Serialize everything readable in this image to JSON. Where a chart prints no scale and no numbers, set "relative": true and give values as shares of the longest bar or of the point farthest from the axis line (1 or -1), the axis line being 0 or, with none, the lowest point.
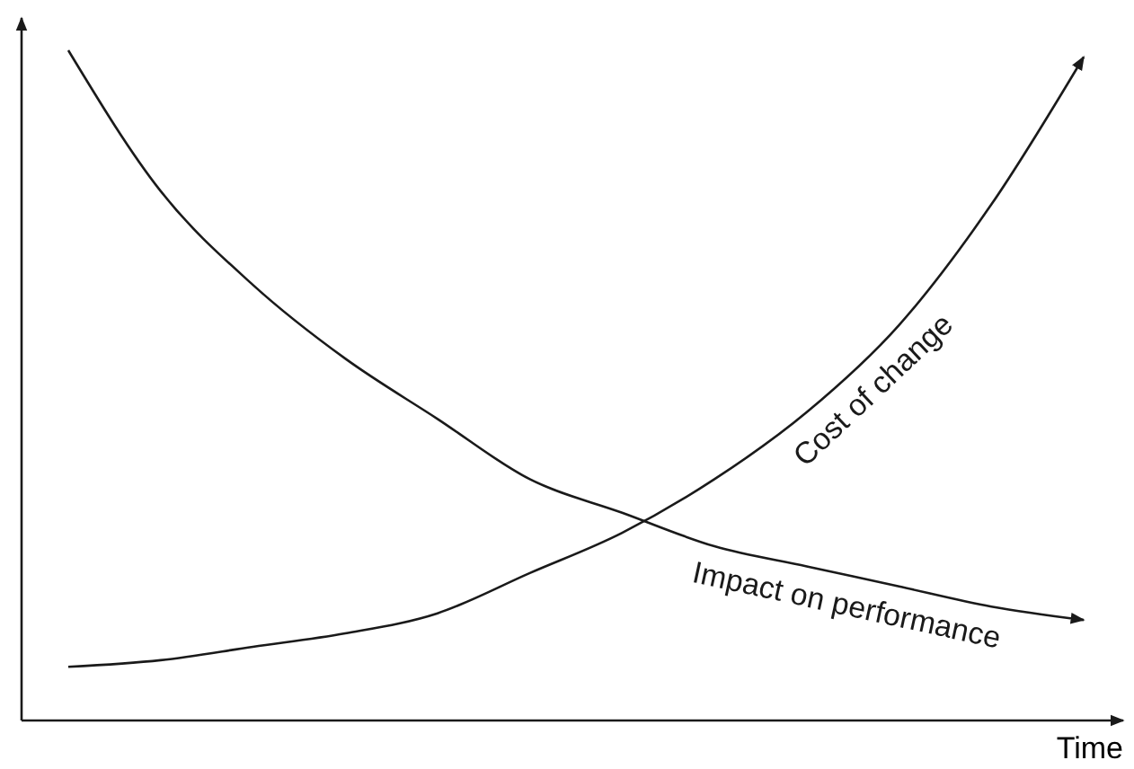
{
  "chart_data": {
    "type": "line",
    "relative": true,
    "xlabel": "Time",
    "categories": [
      null,
      null,
      null,
      null,
      null,
      null,
      null,
      null,
      null,
      null,
      null,
      null
    ],
    "marker": "none",
    "line_style": "solid",
    "legend": false,
    "series": [
      {
        "name": "Impact on performance",
        "color": "#1a1a1a",
        "values": [
          1,
          0.79,
          0.65,
          0.54,
          0.45,
          0.36,
          0.31,
          0.26,
          0.23,
          0.2,
          0.17,
          0.15
        ]
      },
      {
        "name": "Cost of change",
        "color": "#1a1a1a",
        "values": [
          0.08,
          0.09,
          0.11,
          0.13,
          0.16,
          0.22,
          0.28,
          0.36,
          0.46,
          0.59,
          0.77,
          0.99
        ]
      }
    ]
  }
}
